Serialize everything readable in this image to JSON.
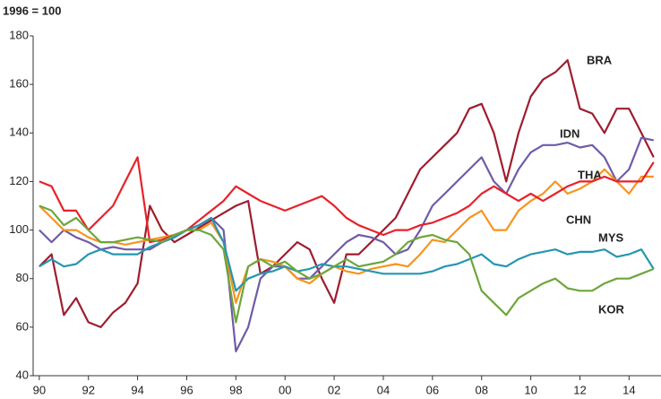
{
  "chart_data": {
    "type": "line",
    "title": "1996 = 100",
    "x": [
      1990,
      1990.5,
      1991,
      1991.5,
      1992,
      1992.5,
      1993,
      1993.5,
      1994,
      1994.5,
      1995,
      1995.5,
      1996,
      1996.5,
      1997,
      1997.5,
      1998,
      1998.5,
      1999,
      1999.5,
      2000,
      2000.5,
      2001,
      2001.5,
      2002,
      2002.5,
      2003,
      2003.5,
      2004,
      2004.5,
      2005,
      2005.5,
      2006,
      2006.5,
      2007,
      2007.5,
      2008,
      2008.5,
      2009,
      2009.5,
      2010,
      2010.5,
      2011,
      2011.5,
      2012,
      2012.5,
      2013,
      2013.5,
      2014,
      2014.5,
      2015
    ],
    "series": [
      {
        "name": "BRA",
        "color": "#9e1d2f",
        "values": [
          85,
          90,
          65,
          72,
          62,
          60,
          66,
          70,
          78,
          110,
          100,
          95,
          98,
          101,
          104,
          107,
          110,
          112,
          82,
          85,
          90,
          95,
          92,
          80,
          70,
          90,
          90,
          95,
          100,
          105,
          115,
          125,
          130,
          135,
          140,
          150,
          152,
          140,
          120,
          140,
          155,
          162,
          165,
          170,
          150,
          148,
          140,
          150,
          150,
          140,
          130
        ]
      },
      {
        "name": "IDN",
        "color": "#6f5ba7",
        "values": [
          100,
          95,
          100,
          97,
          95,
          92,
          93,
          92,
          92,
          92,
          95,
          97,
          100,
          102,
          105,
          100,
          50,
          60,
          80,
          85,
          85,
          80,
          80,
          85,
          90,
          95,
          98,
          97,
          95,
          90,
          92,
          100,
          110,
          115,
          120,
          125,
          130,
          120,
          115,
          125,
          132,
          135,
          135,
          136,
          134,
          135,
          130,
          120,
          125,
          138,
          137
        ]
      },
      {
        "name": "THA",
        "color": "#f7941d",
        "values": [
          110,
          105,
          100,
          100,
          97,
          95,
          95,
          94,
          95,
          96,
          97,
          98,
          100,
          100,
          103,
          95,
          70,
          85,
          88,
          87,
          85,
          80,
          78,
          82,
          85,
          83,
          82,
          84,
          85,
          86,
          85,
          90,
          96,
          95,
          100,
          105,
          108,
          100,
          100,
          108,
          112,
          115,
          120,
          115,
          117,
          120,
          125,
          120,
          115,
          122,
          122
        ]
      },
      {
        "name": "CHN",
        "color": "#e8212a",
        "values": [
          120,
          118,
          108,
          108,
          100,
          105,
          110,
          120,
          130,
          95,
          96,
          98,
          100,
          104,
          108,
          112,
          118,
          115,
          112,
          110,
          108,
          110,
          112,
          114,
          110,
          105,
          102,
          100,
          98,
          100,
          100,
          102,
          103,
          105,
          107,
          110,
          115,
          118,
          115,
          112,
          115,
          112,
          115,
          118,
          120,
          120,
          122,
          120,
          120,
          120,
          128
        ]
      },
      {
        "name": "MYS",
        "color": "#2596b1",
        "values": [
          85,
          88,
          85,
          86,
          90,
          92,
          90,
          90,
          90,
          93,
          95,
          97,
          100,
          102,
          105,
          95,
          75,
          80,
          82,
          83,
          85,
          83,
          84,
          86,
          85,
          85,
          84,
          83,
          82,
          82,
          82,
          82,
          83,
          85,
          86,
          88,
          90,
          86,
          85,
          88,
          90,
          91,
          92,
          90,
          91,
          91,
          92,
          89,
          90,
          92,
          84
        ]
      },
      {
        "name": "KOR",
        "color": "#6da63b",
        "values": [
          110,
          108,
          102,
          105,
          100,
          95,
          95,
          96,
          97,
          96,
          95,
          98,
          100,
          100,
          98,
          92,
          62,
          85,
          88,
          85,
          87,
          83,
          80,
          82,
          85,
          88,
          85,
          86,
          87,
          90,
          95,
          97,
          98,
          96,
          95,
          90,
          75,
          70,
          65,
          72,
          75,
          78,
          80,
          76,
          75,
          75,
          78,
          80,
          80,
          82,
          84
        ]
      }
    ],
    "xlim": [
      1989.75,
      2015.3
    ],
    "xticks": [
      {
        "value": 1990,
        "label": "90"
      },
      {
        "value": 1992,
        "label": "92"
      },
      {
        "value": 1994,
        "label": "94"
      },
      {
        "value": 1996,
        "label": "96"
      },
      {
        "value": 1998,
        "label": "98"
      },
      {
        "value": 2000,
        "label": "00"
      },
      {
        "value": 2002,
        "label": "02"
      },
      {
        "value": 2004,
        "label": "04"
      },
      {
        "value": 2006,
        "label": "06"
      },
      {
        "value": 2008,
        "label": "08"
      },
      {
        "value": 2010,
        "label": "10"
      },
      {
        "value": 2012,
        "label": "12"
      },
      {
        "value": 2014,
        "label": "14"
      }
    ],
    "ylim": [
      40,
      180
    ],
    "yticks": [
      40,
      60,
      80,
      100,
      120,
      140,
      160,
      180
    ],
    "grid": false
  }
}
